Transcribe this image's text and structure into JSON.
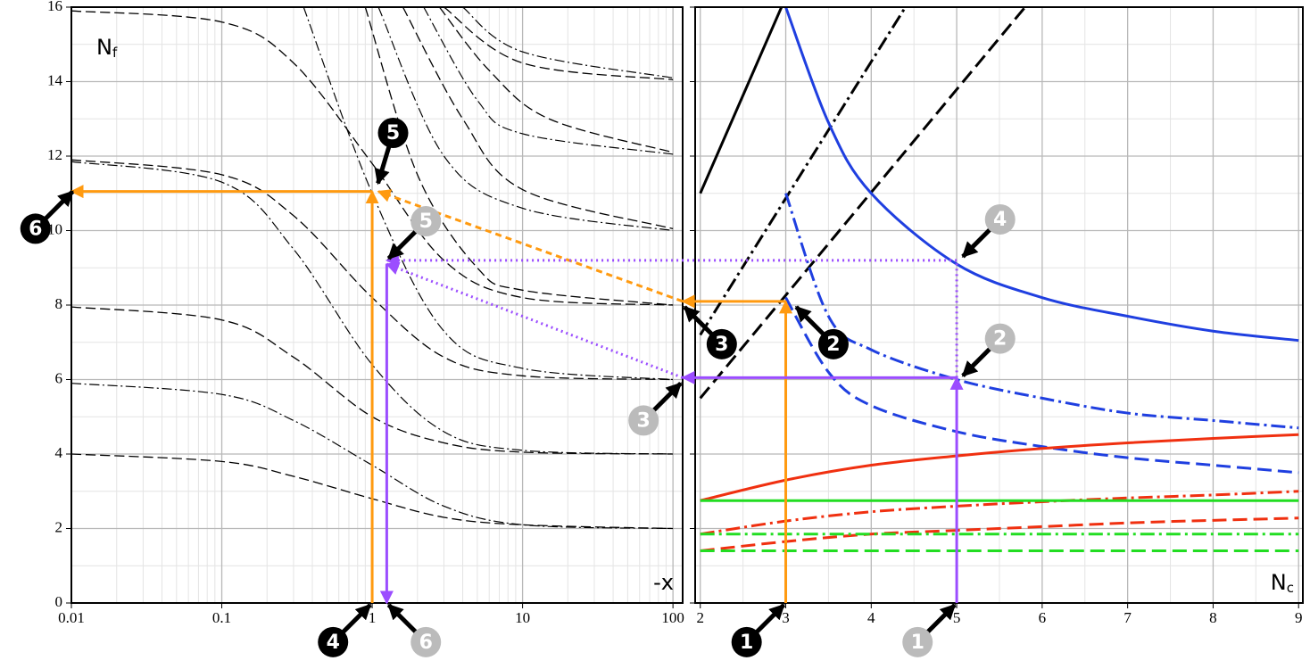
{
  "chart_data": [
    {
      "type": "line",
      "xscale": "log",
      "xlim": [
        0.01,
        116
      ],
      "ylim": [
        0,
        16
      ],
      "xticks": [
        0.01,
        0.1,
        1,
        10,
        100
      ],
      "xminor": [
        0.02,
        0.03,
        0.04,
        0.05,
        0.06,
        0.07,
        0.08,
        0.09,
        0.2,
        0.3,
        0.4,
        0.5,
        0.6,
        0.7,
        0.8,
        0.9,
        2,
        3,
        4,
        5,
        6,
        7,
        8,
        9,
        20,
        30,
        40,
        50,
        60,
        70,
        80,
        90
      ],
      "yticks": [
        0,
        2,
        4,
        6,
        8,
        10,
        12,
        14,
        16
      ],
      "yminor": [
        1,
        3,
        5,
        7,
        9,
        11,
        13,
        15
      ],
      "ytick_labels": true,
      "grid": true,
      "ylabel": "N",
      "ylabel_sub": "f",
      "xlabel": "-x",
      "series": [
        {
          "style": "dash",
          "color": "#000",
          "x": [
            0.01,
            0.1,
            0.3,
            1,
            3,
            10,
            100
          ],
          "y": [
            4,
            3.8,
            3.4,
            2.8,
            2.3,
            2.1,
            2.0
          ]
        },
        {
          "style": "dashdot",
          "color": "#000",
          "x": [
            0.01,
            0.1,
            0.3,
            1,
            3,
            10,
            100
          ],
          "y": [
            5.9,
            5.6,
            4.9,
            3.7,
            2.6,
            2.1,
            2.0
          ]
        },
        {
          "style": "dash",
          "color": "#000",
          "x": [
            0.01,
            0.1,
            0.3,
            1,
            3,
            10,
            100
          ],
          "y": [
            7.95,
            7.6,
            6.6,
            5.0,
            4.3,
            4.05,
            4.0
          ]
        },
        {
          "style": "dashdot",
          "color": "#000",
          "x": [
            0.01,
            0.1,
            0.3,
            1,
            3,
            10,
            100
          ],
          "y": [
            11.85,
            11.3,
            9.5,
            6.4,
            4.6,
            4.1,
            4.0
          ]
        },
        {
          "style": "dash",
          "color": "#000",
          "x": [
            0.01,
            0.1,
            0.3,
            1,
            3,
            10,
            100
          ],
          "y": [
            11.9,
            11.5,
            10.4,
            8.2,
            6.6,
            6.1,
            6.0
          ]
        },
        {
          "style": "dash",
          "color": "#000",
          "x": [
            0.01,
            0.1,
            0.3,
            1,
            3,
            10,
            100
          ],
          "y": [
            15.9,
            15.6,
            14.5,
            11.8,
            9.2,
            8.2,
            8.0
          ]
        },
        {
          "style": "dashdot",
          "color": "#000",
          "x": [
            0.35,
            1,
            3,
            10,
            100
          ],
          "y": [
            16,
            11,
            7.3,
            6.3,
            6.0
          ]
        },
        {
          "style": "dash",
          "color": "#000",
          "x": [
            0.9,
            2,
            5,
            10,
            100
          ],
          "y": [
            16,
            11.5,
            9,
            8.4,
            8.0
          ]
        },
        {
          "style": "dashdot",
          "color": "#000",
          "x": [
            1.1,
            3,
            10,
            100
          ],
          "y": [
            16,
            12.0,
            10.6,
            10.0
          ]
        },
        {
          "style": "dash",
          "color": "#000",
          "x": [
            1.6,
            4,
            10,
            100
          ],
          "y": [
            16,
            13.0,
            11.1,
            10.05
          ]
        },
        {
          "style": "dashdot",
          "color": "#000",
          "x": [
            2.2,
            5,
            10,
            100
          ],
          "y": [
            16,
            13.5,
            12.6,
            12.05
          ]
        },
        {
          "style": "dash",
          "color": "#000",
          "x": [
            2.8,
            6,
            15,
            100
          ],
          "y": [
            16,
            14.3,
            13.0,
            12.1
          ]
        },
        {
          "style": "dash",
          "color": "#000",
          "x": [
            3,
            10,
            100
          ],
          "y": [
            16,
            14.5,
            14.05
          ]
        },
        {
          "style": "dashdot",
          "color": "#000",
          "x": [
            4,
            10,
            100
          ],
          "y": [
            16,
            14.8,
            14.1
          ]
        }
      ]
    },
    {
      "type": "line",
      "xscale": "linear",
      "xlim": [
        1.94,
        9.05
      ],
      "ylim": [
        0,
        16
      ],
      "xticks": [
        2,
        3,
        4,
        5,
        6,
        7,
        8,
        9
      ],
      "xminor": [
        2.5,
        3.5,
        4.5,
        5.5,
        6.5,
        7.5,
        8.5
      ],
      "yticks": [
        0,
        2,
        4,
        6,
        8,
        10,
        12,
        14,
        16
      ],
      "yminor": [
        1,
        3,
        5,
        7,
        9,
        11,
        13,
        15
      ],
      "ytick_labels": false,
      "grid": true,
      "xlabel": "N",
      "xlabel_sub": "c",
      "series": [
        {
          "style": "solid",
          "color": "#000",
          "x": [
            2,
            2.95
          ],
          "y": [
            11,
            16
          ]
        },
        {
          "style": "dashdot",
          "color": "#000",
          "x": [
            2,
            4.4
          ],
          "y": [
            7.2,
            16
          ]
        },
        {
          "style": "dash",
          "color": "#000",
          "x": [
            2,
            5.8
          ],
          "y": [
            5.5,
            16
          ]
        },
        {
          "style": "solid",
          "color": "#1f3fe0",
          "x": [
            3,
            3.5,
            4,
            5,
            6,
            7,
            8,
            9
          ],
          "y": [
            16,
            12.9,
            11.0,
            9.1,
            8.2,
            7.7,
            7.3,
            7.05
          ]
        },
        {
          "style": "dashdot",
          "color": "#1f3fe0",
          "x": [
            3,
            3.5,
            4,
            5,
            6,
            7,
            8,
            9
          ],
          "y": [
            11,
            7.7,
            6.8,
            6.0,
            5.5,
            5.1,
            4.9,
            4.7
          ]
        },
        {
          "style": "dash",
          "color": "#1f3fe0",
          "x": [
            3,
            3.5,
            4,
            5,
            6,
            7,
            8,
            9
          ],
          "y": [
            8.2,
            6.2,
            5.3,
            4.6,
            4.2,
            3.9,
            3.7,
            3.5
          ]
        },
        {
          "style": "solid",
          "color": "#f03010",
          "x": [
            2,
            3,
            4,
            5,
            6,
            7,
            8,
            9
          ],
          "y": [
            2.75,
            3.3,
            3.7,
            3.95,
            4.15,
            4.3,
            4.42,
            4.52
          ]
        },
        {
          "style": "dashdot",
          "color": "#f03010",
          "x": [
            2,
            3,
            4,
            5,
            6,
            7,
            8,
            9
          ],
          "y": [
            1.85,
            2.2,
            2.45,
            2.6,
            2.72,
            2.82,
            2.9,
            3.0
          ]
        },
        {
          "style": "dash",
          "color": "#f03010",
          "x": [
            2,
            3,
            4,
            5,
            6,
            7,
            8,
            9
          ],
          "y": [
            1.4,
            1.65,
            1.85,
            1.95,
            2.05,
            2.15,
            2.22,
            2.28
          ]
        },
        {
          "style": "solid",
          "color": "#22dd22",
          "x": [
            2,
            9
          ],
          "y": [
            2.75,
            2.75
          ]
        },
        {
          "style": "dashdot",
          "color": "#22dd22",
          "x": [
            2,
            9
          ],
          "y": [
            1.85,
            1.85
          ]
        },
        {
          "style": "dash",
          "color": "#22dd22",
          "x": [
            2,
            9
          ],
          "y": [
            1.4,
            1.4
          ]
        }
      ]
    }
  ],
  "segments": [
    {
      "color": "orange",
      "style": "solid",
      "arrow": true,
      "a": [
        1,
        3,
        0
      ],
      "b": [
        1,
        3,
        8.1
      ]
    },
    {
      "color": "orange",
      "style": "solid",
      "arrow": true,
      "a": [
        1,
        3,
        8.1
      ],
      "b": [
        0,
        116,
        8.1
      ]
    },
    {
      "color": "orange",
      "style": "dashed",
      "arrow": true,
      "a": [
        0,
        116,
        8.1
      ],
      "b": [
        0,
        1.1,
        11.05
      ]
    },
    {
      "color": "orange",
      "style": "solid",
      "arrow": true,
      "a": [
        0,
        1,
        0
      ],
      "b": [
        0,
        1,
        11.05
      ]
    },
    {
      "color": "orange",
      "style": "solid",
      "arrow": true,
      "a": [
        0,
        1,
        11.05
      ],
      "b": [
        0,
        0.01,
        11.05
      ]
    },
    {
      "color": "purple",
      "style": "solid",
      "arrow": true,
      "a": [
        1,
        5,
        0
      ],
      "b": [
        1,
        5,
        6.05
      ]
    },
    {
      "color": "purple",
      "style": "solid",
      "arrow": true,
      "a": [
        1,
        5,
        6.05
      ],
      "b": [
        0,
        116,
        6.05
      ]
    },
    {
      "color": "purple",
      "style": "dotted",
      "arrow": false,
      "a": [
        1,
        5,
        6.05
      ],
      "b": [
        1,
        5,
        9.2
      ]
    },
    {
      "color": "purple",
      "style": "dotted",
      "arrow": true,
      "a": [
        1,
        5,
        9.2
      ],
      "b": [
        0,
        1.25,
        9.2
      ]
    },
    {
      "color": "purple",
      "style": "dotted",
      "arrow": true,
      "a": [
        0,
        116,
        6.05
      ],
      "b": [
        0,
        1.25,
        9.1
      ]
    },
    {
      "color": "purple",
      "style": "solid",
      "arrow": true,
      "a": [
        0,
        1.25,
        9.1
      ],
      "b": [
        0,
        1.25,
        0
      ]
    }
  ],
  "markers": [
    {
      "label": "1",
      "tone": "black",
      "panel": 1,
      "x": 3,
      "y": 0,
      "dir": "sw"
    },
    {
      "label": "1",
      "tone": "gray",
      "panel": 1,
      "x": 5,
      "y": 0,
      "dir": "sw"
    },
    {
      "label": "2",
      "tone": "black",
      "panel": 1,
      "x": 3.1,
      "y": 8.0,
      "dir": "se"
    },
    {
      "label": "2",
      "tone": "gray",
      "panel": 1,
      "x": 5.05,
      "y": 6.05,
      "dir": "ne"
    },
    {
      "label": "4",
      "tone": "gray",
      "panel": 1,
      "x": 5.05,
      "y": 9.25,
      "dir": "ne"
    },
    {
      "label": "3",
      "tone": "black",
      "panel": 0,
      "x": 116,
      "y": 8.0,
      "dir": "se"
    },
    {
      "label": "3",
      "tone": "gray",
      "panel": 0,
      "x": 116,
      "y": 5.95,
      "dir": "sw"
    },
    {
      "label": "5",
      "tone": "black",
      "panel": 0,
      "x": 1.08,
      "y": 11.2,
      "dir": "n"
    },
    {
      "label": "5",
      "tone": "gray",
      "panel": 0,
      "x": 1.25,
      "y": 9.2,
      "dir": "ne"
    },
    {
      "label": "6",
      "tone": "black",
      "panel": 0,
      "x": 0.0105,
      "y": 11.1,
      "dir": "sw"
    },
    {
      "label": "4",
      "tone": "black",
      "panel": 0,
      "x": 1,
      "y": 0,
      "dir": "sw"
    },
    {
      "label": "6",
      "tone": "gray",
      "panel": 0,
      "x": 1.25,
      "y": 0,
      "dir": "se"
    }
  ]
}
